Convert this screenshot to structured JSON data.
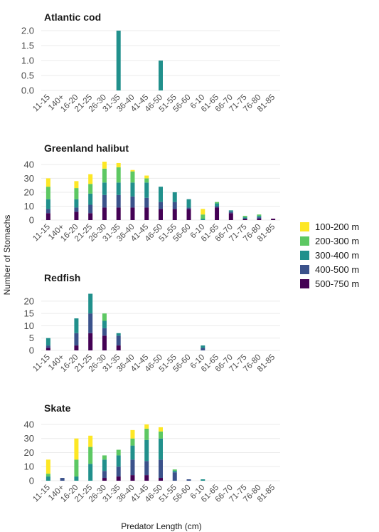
{
  "chart_data": {
    "type": "bar",
    "stacked": true,
    "xlabel": "Predator Length (cm)",
    "ylabel": "Number of Stomachs",
    "categories": [
      "11-15",
      "140+",
      "16-20",
      "21-25",
      "26-30",
      "31-35",
      "36-40",
      "41-45",
      "46-50",
      "51-55",
      "56-60",
      "6-10",
      "61-65",
      "66-70",
      "71-75",
      "76-80",
      "81-85"
    ],
    "legend": {
      "position": "right",
      "entries": [
        {
          "name": "100-200 m",
          "color": "#FDE725"
        },
        {
          "name": "200-300 m",
          "color": "#5DC863"
        },
        {
          "name": "300-400 m",
          "color": "#21908C"
        },
        {
          "name": "400-500 m",
          "color": "#3B528B"
        },
        {
          "name": "500-750 m",
          "color": "#440154"
        }
      ]
    },
    "grid": true,
    "panels": [
      {
        "title": "Atlantic cod",
        "ylim": [
          0,
          2.0
        ],
        "yticks": [
          0.0,
          0.5,
          1.0,
          1.5,
          2.0
        ],
        "ytick_labels": [
          "0.0",
          "0.5",
          "1.0",
          "1.5",
          "2.0"
        ],
        "series": [
          {
            "name": "100-200 m",
            "values": [
              0,
              0,
              0,
              0,
              0,
              0,
              0,
              0,
              0,
              0,
              0,
              0,
              0,
              0,
              0,
              0,
              0
            ]
          },
          {
            "name": "200-300 m",
            "values": [
              0,
              0,
              0,
              0,
              0,
              0,
              0,
              0,
              0,
              0,
              0,
              0,
              0,
              0,
              0,
              0,
              0
            ]
          },
          {
            "name": "300-400 m",
            "values": [
              0,
              0,
              0,
              0,
              0,
              2,
              0,
              0,
              1,
              0,
              0,
              0,
              0,
              0,
              0,
              0,
              0
            ]
          },
          {
            "name": "400-500 m",
            "values": [
              0,
              0,
              0,
              0,
              0,
              0,
              0,
              0,
              0,
              0,
              0,
              0,
              0,
              0,
              0,
              0,
              0
            ]
          },
          {
            "name": "500-750 m",
            "values": [
              0,
              0,
              0,
              0,
              0,
              0,
              0,
              0,
              0,
              0,
              0,
              0,
              0,
              0,
              0,
              0,
              0
            ]
          }
        ]
      },
      {
        "title": "Greenland halibut",
        "ylim": [
          0,
          42
        ],
        "yticks": [
          0,
          10,
          20,
          30,
          40
        ],
        "ytick_labels": [
          "0",
          "10",
          "20",
          "30",
          "40"
        ],
        "series": [
          {
            "name": "100-200 m",
            "values": [
              6,
              0,
              5,
              7,
              5,
              3,
              1,
              2,
              0,
              0,
              0,
              4,
              0,
              0,
              0,
              0,
              0
            ]
          },
          {
            "name": "200-300 m",
            "values": [
              9,
              0,
              8,
              7,
              10,
              11,
              8,
              3,
              0,
              0,
              0,
              3,
              1,
              0,
              1,
              1,
              0
            ]
          },
          {
            "name": "300-400 m",
            "values": [
              7,
              0,
              6,
              8,
              9,
              9,
              10,
              11,
              11,
              7,
              6,
              1,
              2,
              1,
              1,
              1,
              0
            ]
          },
          {
            "name": "400-500 m",
            "values": [
              3,
              0,
              3,
              6,
              9,
              9,
              8,
              7,
              5,
              5,
              1,
              0,
              1,
              1,
              0,
              1,
              0
            ]
          },
          {
            "name": "500-750 m",
            "values": [
              5,
              0,
              6,
              5,
              9,
              9,
              9,
              9,
              8,
              8,
              8,
              0,
              9,
              5,
              1,
              1,
              1
            ]
          }
        ]
      },
      {
        "title": "Redfish",
        "ylim": [
          0,
          24
        ],
        "yticks": [
          0,
          5,
          10,
          15,
          20
        ],
        "ytick_labels": [
          "0",
          "5",
          "10",
          "15",
          "20"
        ],
        "series": [
          {
            "name": "100-200 m",
            "values": [
              0,
              0,
              0,
              0,
              0,
              0,
              0,
              0,
              0,
              0,
              0,
              0,
              0,
              0,
              0,
              0,
              0
            ]
          },
          {
            "name": "200-300 m",
            "values": [
              0,
              0,
              0,
              0,
              3,
              0,
              0,
              0,
              0,
              0,
              0,
              0,
              0,
              0,
              0,
              0,
              0
            ]
          },
          {
            "name": "300-400 m",
            "values": [
              3,
              0,
              6,
              8,
              3,
              1,
              0,
              0,
              0,
              0,
              0,
              1,
              0,
              0,
              0,
              0,
              0
            ]
          },
          {
            "name": "400-500 m",
            "values": [
              1,
              0,
              5,
              8,
              3,
              4,
              0,
              0,
              0,
              0,
              0,
              1,
              0,
              0,
              0,
              0,
              0
            ]
          },
          {
            "name": "500-750 m",
            "values": [
              1,
              0,
              2,
              7,
              6,
              2,
              0,
              0,
              0,
              0,
              0,
              0,
              0,
              0,
              0,
              0,
              0
            ]
          }
        ]
      },
      {
        "title": "Skate",
        "ylim": [
          0,
          42
        ],
        "yticks": [
          0,
          10,
          20,
          30,
          40
        ],
        "ytick_labels": [
          "0",
          "10",
          "20",
          "30",
          "40"
        ],
        "series": [
          {
            "name": "100-200 m",
            "values": [
              10,
              0,
              15,
              8,
              0,
              0,
              6,
              3,
              3,
              0,
              0,
              0,
              0,
              0,
              0,
              0,
              0
            ]
          },
          {
            "name": "200-300 m",
            "values": [
              2,
              0,
              12,
              12,
              3,
              4,
              5,
              8,
              5,
              1,
              0,
              0,
              0,
              0,
              0,
              0,
              0
            ]
          },
          {
            "name": "300-400 m",
            "values": [
              3,
              0,
              3,
              12,
              8,
              8,
              10,
              15,
              15,
              1,
              0,
              1,
              0,
              0,
              0,
              0,
              0
            ]
          },
          {
            "name": "400-500 m",
            "values": [
              0,
              2,
              0,
              0,
              5,
              7,
              11,
              10,
              13,
              6,
              1,
              0,
              0,
              0,
              0,
              0,
              0
            ]
          },
          {
            "name": "500-750 m",
            "values": [
              0,
              0,
              0,
              0,
              2,
              3,
              4,
              4,
              2,
              0,
              0,
              0,
              0,
              0,
              0,
              0,
              0
            ]
          }
        ]
      }
    ]
  }
}
